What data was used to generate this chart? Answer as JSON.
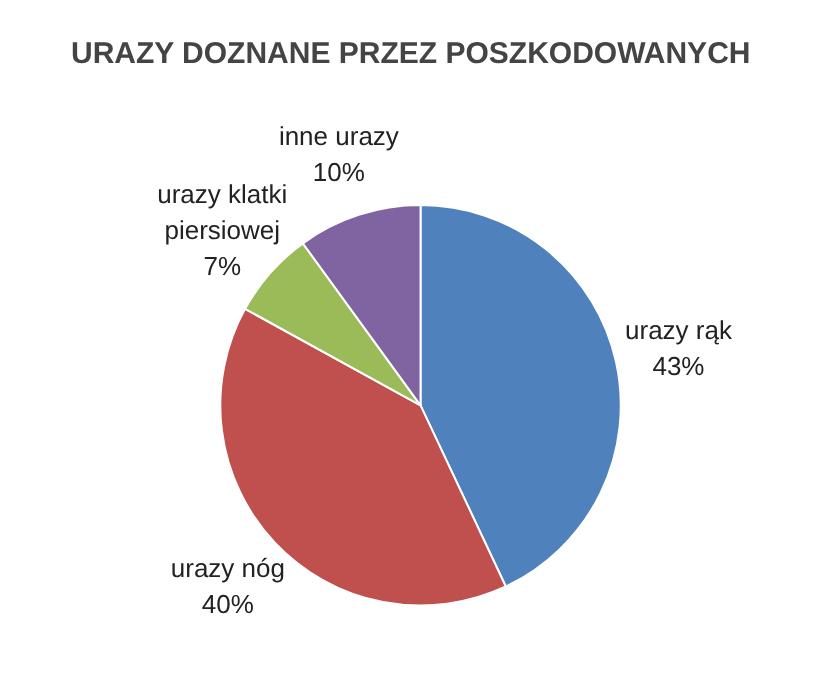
{
  "chart_data": {
    "type": "pie",
    "title": "URAZY DOZNANE PRZEZ POSZKODOWANYCH",
    "categories": [
      "urazy rąk",
      "urazy nóg",
      "urazy klatki piersiowej",
      "inne urazy"
    ],
    "values": [
      43,
      40,
      7,
      10
    ],
    "value_labels": [
      "43%",
      "40%",
      "7%",
      "10%"
    ],
    "colors": [
      "#4f81bd",
      "#c0504d",
      "#9bbb59",
      "#8064a2"
    ],
    "legend": false
  }
}
